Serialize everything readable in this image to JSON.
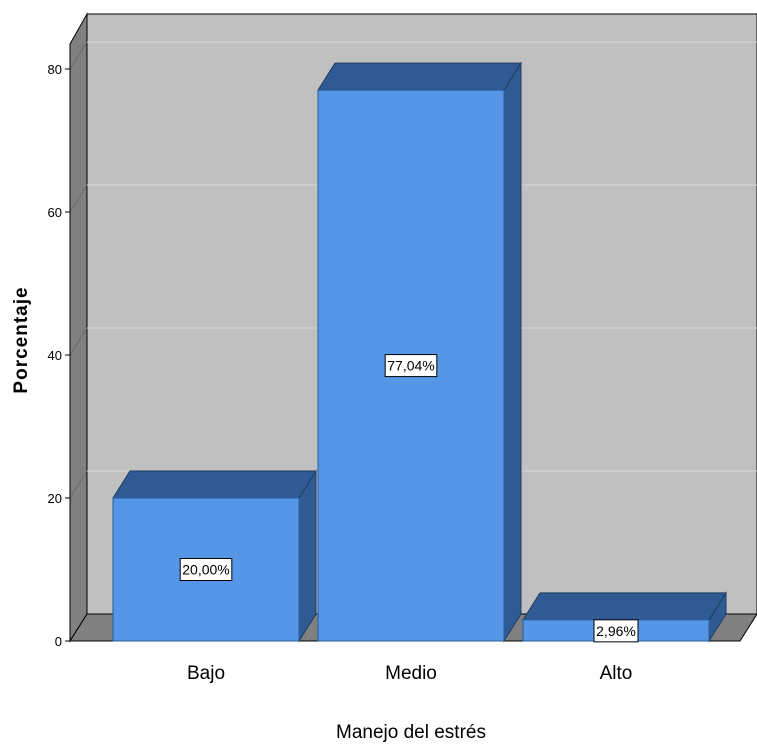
{
  "chart_data": {
    "type": "bar",
    "categories": [
      "Bajo",
      "Medio",
      "Alto"
    ],
    "values": [
      20.0,
      77.04,
      2.96
    ],
    "data_labels": [
      "20,00%",
      "77,04%",
      "2,96%"
    ],
    "xlabel": "Manejo del estrés",
    "ylabel": "Porcentaje",
    "ylim": [
      0,
      80
    ],
    "yticks": [
      0,
      20,
      40,
      60,
      80
    ],
    "grid": true,
    "three_d": true,
    "colors": {
      "bar_front": "#5596E6",
      "bar_top": "#2F5A93",
      "bar_side": "#2F5A93",
      "back_wall": "#C0C0C0",
      "side_wall": "#808080",
      "floor": "#808080",
      "gridline": "#D8D8D8"
    }
  }
}
